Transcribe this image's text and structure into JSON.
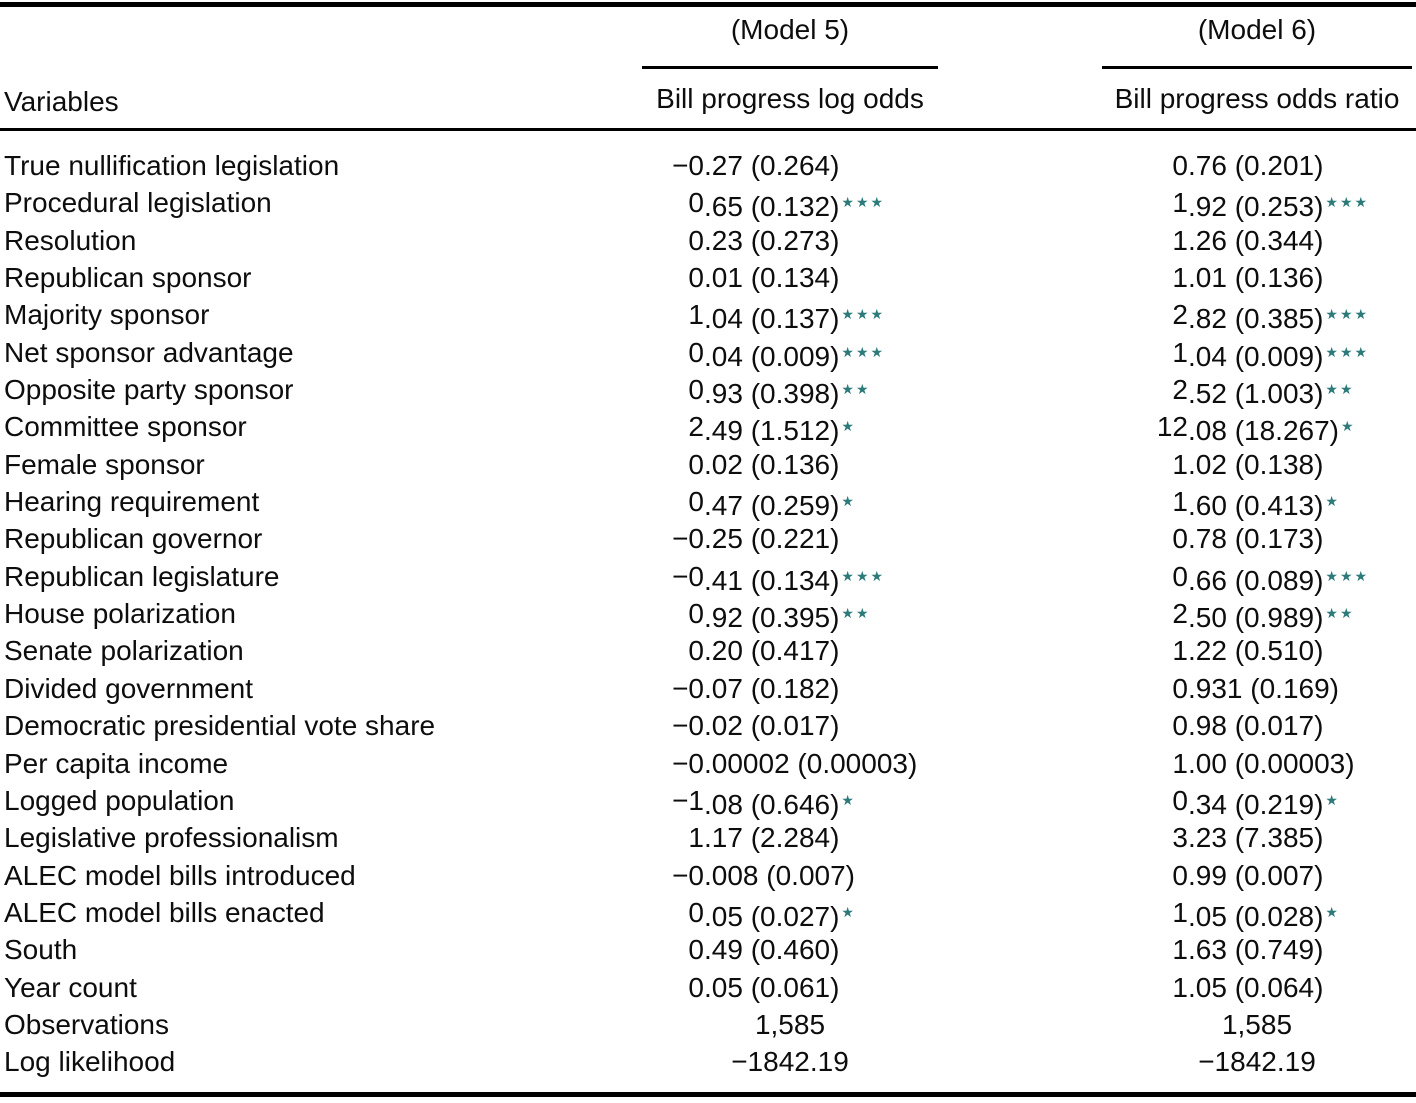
{
  "table": {
    "columns": {
      "variables_header": "Variables",
      "models": [
        {
          "model_label": "(Model 5)",
          "column_label": "Bill progress log odds"
        },
        {
          "model_label": "(Model 6)",
          "column_label": "Bill progress odds ratio"
        }
      ]
    },
    "rows": [
      {
        "variable": "True nullification legislation",
        "m5": {
          "coef": "−0.27",
          "se": "(0.264)",
          "stars": ""
        },
        "m6": {
          "coef": "0.76",
          "se": "(0.201)",
          "stars": ""
        }
      },
      {
        "variable": "Procedural legislation",
        "m5": {
          "coef": "0.65",
          "se": "(0.132)",
          "stars": "***"
        },
        "m6": {
          "coef": "1.92",
          "se": "(0.253)",
          "stars": "***"
        }
      },
      {
        "variable": "Resolution",
        "m5": {
          "coef": "0.23",
          "se": "(0.273)",
          "stars": ""
        },
        "m6": {
          "coef": "1.26",
          "se": "(0.344)",
          "stars": ""
        }
      },
      {
        "variable": "Republican sponsor",
        "m5": {
          "coef": "0.01",
          "se": "(0.134)",
          "stars": ""
        },
        "m6": {
          "coef": "1.01",
          "se": "(0.136)",
          "stars": ""
        }
      },
      {
        "variable": "Majority sponsor",
        "m5": {
          "coef": "1.04",
          "se": "(0.137)",
          "stars": "***"
        },
        "m6": {
          "coef": "2.82",
          "se": "(0.385)",
          "stars": "***"
        }
      },
      {
        "variable": "Net sponsor advantage",
        "m5": {
          "coef": "0.04",
          "se": "(0.009)",
          "stars": "***"
        },
        "m6": {
          "coef": "1.04",
          "se": "(0.009)",
          "stars": "***"
        }
      },
      {
        "variable": "Opposite party sponsor",
        "m5": {
          "coef": "0.93",
          "se": "(0.398)",
          "stars": "**"
        },
        "m6": {
          "coef": "2.52",
          "se": "(1.003)",
          "stars": "**"
        }
      },
      {
        "variable": "Committee sponsor",
        "m5": {
          "coef": "2.49",
          "se": "(1.512)",
          "stars": "*"
        },
        "m6": {
          "coef": "12.08",
          "se": "(18.267)",
          "stars": "*"
        }
      },
      {
        "variable": "Female sponsor",
        "m5": {
          "coef": "0.02",
          "se": "(0.136)",
          "stars": ""
        },
        "m6": {
          "coef": "1.02",
          "se": "(0.138)",
          "stars": ""
        }
      },
      {
        "variable": "Hearing requirement",
        "m5": {
          "coef": "0.47",
          "se": "(0.259)",
          "stars": "*"
        },
        "m6": {
          "coef": "1.60",
          "se": "(0.413)",
          "stars": "*"
        }
      },
      {
        "variable": "Republican governor",
        "m5": {
          "coef": "−0.25",
          "se": "(0.221)",
          "stars": ""
        },
        "m6": {
          "coef": "0.78",
          "se": "(0.173)",
          "stars": ""
        }
      },
      {
        "variable": "Republican legislature",
        "m5": {
          "coef": "−0.41",
          "se": "(0.134)",
          "stars": "***"
        },
        "m6": {
          "coef": "0.66",
          "se": "(0.089)",
          "stars": "***"
        }
      },
      {
        "variable": "House polarization",
        "m5": {
          "coef": "0.92",
          "se": "(0.395)",
          "stars": "**"
        },
        "m6": {
          "coef": "2.50",
          "se": "(0.989)",
          "stars": "**"
        }
      },
      {
        "variable": "Senate polarization",
        "m5": {
          "coef": "0.20",
          "se": "(0.417)",
          "stars": ""
        },
        "m6": {
          "coef": "1.22",
          "se": "(0.510)",
          "stars": ""
        }
      },
      {
        "variable": "Divided government",
        "m5": {
          "coef": "−0.07",
          "se": "(0.182)",
          "stars": ""
        },
        "m6": {
          "coef": "0.931",
          "se": "(0.169)",
          "stars": ""
        }
      },
      {
        "variable": "Democratic presidential vote share",
        "m5": {
          "coef": "−0.02",
          "se": "(0.017)",
          "stars": ""
        },
        "m6": {
          "coef": "0.98",
          "se": "(0.017)",
          "stars": ""
        }
      },
      {
        "variable": "Per capita income",
        "m5": {
          "coef": "−0.00002",
          "se": "(0.00003)",
          "stars": ""
        },
        "m6": {
          "coef": "1.00",
          "se": "(0.00003)",
          "stars": ""
        }
      },
      {
        "variable": "Logged population",
        "m5": {
          "coef": "−1.08",
          "se": "(0.646)",
          "stars": "*"
        },
        "m6": {
          "coef": "0.34",
          "se": "(0.219)",
          "stars": "*"
        }
      },
      {
        "variable": "Legislative professionalism",
        "m5": {
          "coef": "1.17",
          "se": "(2.284)",
          "stars": ""
        },
        "m6": {
          "coef": "3.23",
          "se": "(7.385)",
          "stars": ""
        }
      },
      {
        "variable": "ALEC model bills introduced",
        "m5": {
          "coef": "−0.008",
          "se": "(0.007)",
          "stars": ""
        },
        "m6": {
          "coef": "0.99",
          "se": "(0.007)",
          "stars": ""
        }
      },
      {
        "variable": "ALEC model bills enacted",
        "m5": {
          "coef": "0.05",
          "se": "(0.027)",
          "stars": "*"
        },
        "m6": {
          "coef": "1.05",
          "se": "(0.028)",
          "stars": "*"
        }
      },
      {
        "variable": "South",
        "m5": {
          "coef": "0.49",
          "se": "(0.460)",
          "stars": ""
        },
        "m6": {
          "coef": "1.63",
          "se": "(0.749)",
          "stars": ""
        }
      },
      {
        "variable": "Year count",
        "m5": {
          "coef": "0.05",
          "se": "(0.061)",
          "stars": ""
        },
        "m6": {
          "coef": "1.05",
          "se": "(0.064)",
          "stars": ""
        }
      }
    ],
    "summary_rows": [
      {
        "variable": "Observations",
        "m5": "1,585",
        "m6": "1,585"
      },
      {
        "variable": "Log likelihood",
        "m5": "−1842.19",
        "m6": "−1842.19"
      }
    ],
    "colors": {
      "text": "#0d0d0d",
      "rule": "#000000",
      "significance_star": "#2d7a7a"
    }
  }
}
